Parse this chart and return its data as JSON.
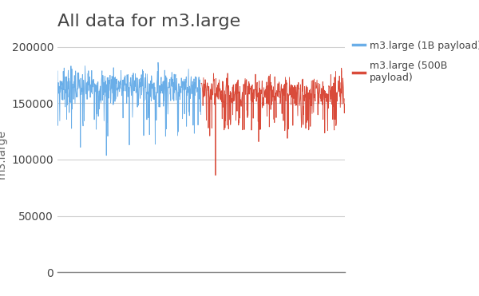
{
  "title": "All data for m3.large",
  "ylabel": "m3.large",
  "ylim": [
    0,
    210000
  ],
  "yticks": [
    0,
    50000,
    100000,
    150000,
    200000
  ],
  "legend_labels": [
    "m3.large (1B payload)",
    "m3.large (500B\npayload)"
  ],
  "color_blue": "#6aaee8",
  "color_red": "#d94b3a",
  "background_color": "#ffffff",
  "grid_color": "#d0d0d0",
  "title_fontsize": 16,
  "label_fontsize": 10,
  "tick_fontsize": 10,
  "n_blue": 500,
  "n_red": 500,
  "blue_mean": 165000,
  "blue_std": 8000,
  "red_mean": 160000,
  "red_std": 7000,
  "seed": 7
}
